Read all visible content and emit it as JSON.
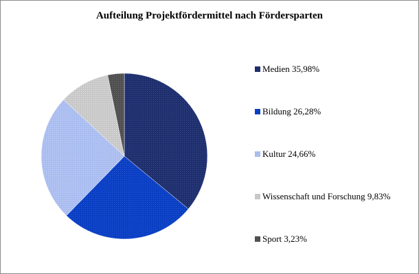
{
  "chart_data": {
    "type": "pie",
    "title": "Aufteilung Projektfördermittel nach Fördersparten",
    "categories": [
      "Medien",
      "Bildung",
      "Kultur",
      "Wissenschaft und Forschung",
      "Sport"
    ],
    "values": [
      35.98,
      26.28,
      24.66,
      9.83,
      3.23
    ],
    "value_labels": [
      "35,98%",
      "26,28%",
      "24,66%",
      "9,83%",
      "3,23%"
    ],
    "legend_labels": [
      "Medien 35,98%",
      "Bildung  26,28%",
      "Kultur  24,66%",
      "Wissenschaft und Forschung  9,83%",
      "Sport  3,23%"
    ],
    "colors": [
      "#1f2f6e",
      "#0a3fc4",
      "#aabdf0",
      "#c8c8c8",
      "#505050"
    ],
    "legend_position": "right"
  }
}
